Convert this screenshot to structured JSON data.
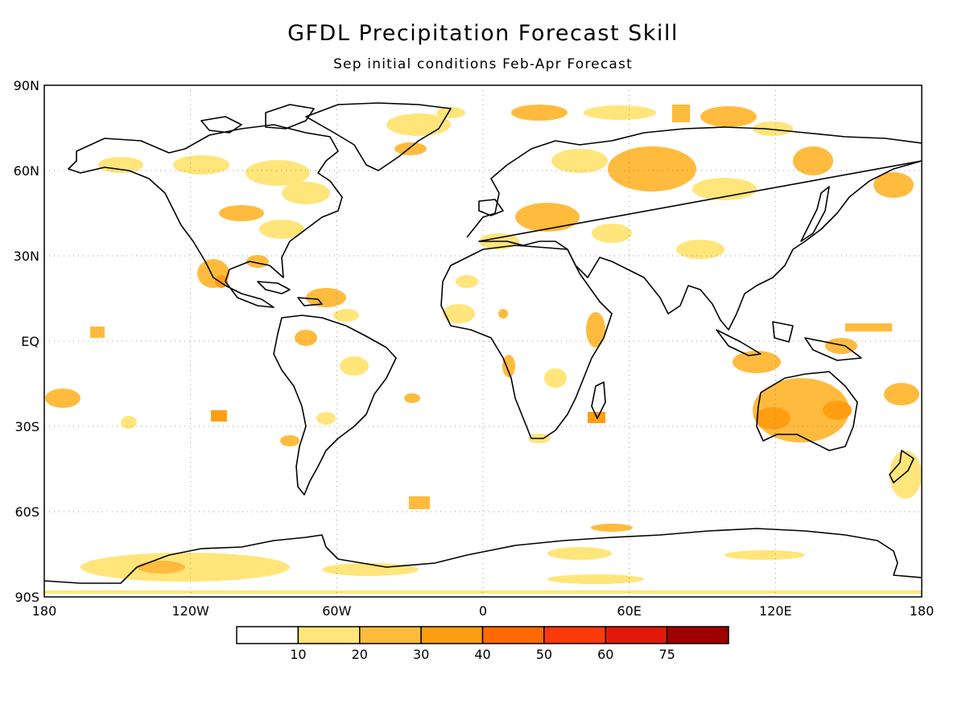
{
  "title": "GFDL Precipitation Forecast Skill",
  "subtitle": "Sep initial conditions  Feb-Apr Forecast",
  "map": {
    "lat_labels": [
      "90N",
      "60N",
      "30N",
      "EQ",
      "30S",
      "60S",
      "90S"
    ],
    "lon_labels": [
      "180",
      "120W",
      "60W",
      "0",
      "60E",
      "120E",
      "180"
    ],
    "lat_range": [
      -90,
      90
    ],
    "lon_range": [
      -180,
      180
    ],
    "grid": "dotted",
    "land_outline_color": "#000000",
    "ocean_color": "#ffffff"
  },
  "legend": {
    "labels": [
      "10",
      "20",
      "30",
      "40",
      "50",
      "60",
      "75"
    ],
    "colors": [
      "#ffffff",
      "#ffe57a",
      "#ffbb3d",
      "#ff9e10",
      "#ff6a00",
      "#ff3a0a",
      "#e01a0a",
      "#a00000"
    ]
  }
}
